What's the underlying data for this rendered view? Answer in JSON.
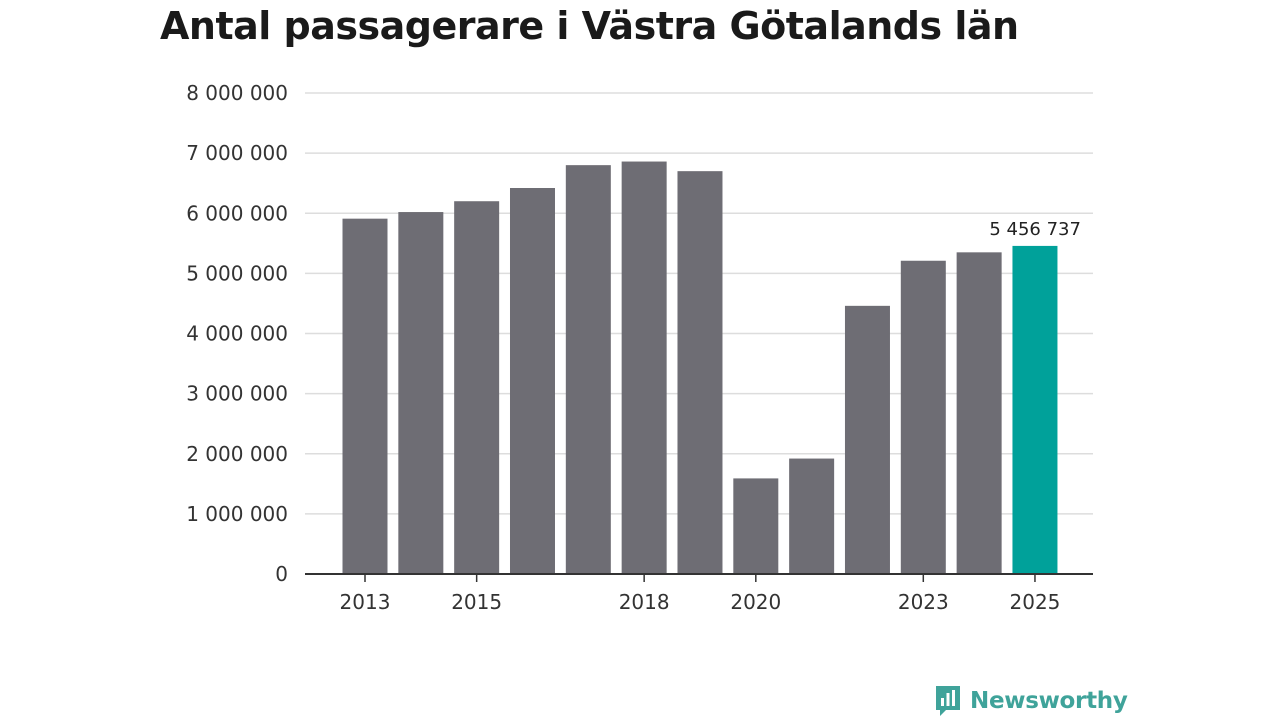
{
  "chart_data": {
    "type": "bar",
    "title": "Antal passagerare i Västra Götalands län",
    "categories": [
      "2013",
      "2014",
      "2015",
      "2016",
      "2017",
      "2018",
      "2019",
      "2020",
      "2021",
      "2022",
      "2023",
      "2024",
      "2025"
    ],
    "values": [
      5910000,
      6020000,
      6200000,
      6420000,
      6800000,
      6860000,
      6700000,
      1590000,
      1920000,
      4460000,
      5210000,
      5350000,
      5456737
    ],
    "x_tick_labels": [
      "2013",
      "2015",
      "2018",
      "2020",
      "2023",
      "2025"
    ],
    "y_ticks": [
      0,
      1000000,
      2000000,
      3000000,
      4000000,
      5000000,
      6000000,
      7000000,
      8000000
    ],
    "y_tick_labels": [
      "0",
      "1 000 000",
      "2 000 000",
      "3 000 000",
      "4 000 000",
      "5 000 000",
      "6 000 000",
      "7 000 000",
      "8 000 000"
    ],
    "ylim": [
      0,
      8000000
    ],
    "highlight_index": 12,
    "highlight_label": "5 456 737",
    "xlabel": "",
    "ylabel": "",
    "grid": true,
    "colors": {
      "bar": "#6e6d74",
      "highlight": "#00a19a",
      "grid": "#dddddd",
      "axis": "#333333"
    }
  },
  "brand": {
    "name": "Newsworthy",
    "color": "#3fa39a",
    "icon": "newsworthy-logo-icon"
  }
}
